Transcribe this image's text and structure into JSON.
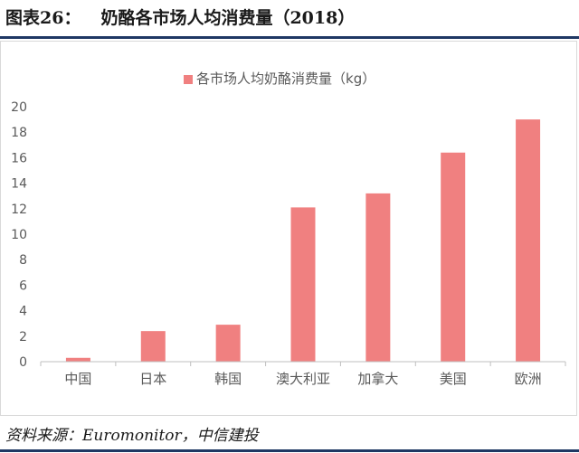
{
  "figure": {
    "label": "图表26：",
    "title": "奶酪各市场人均消费量（2018）",
    "source": "资料来源：Euromonitor，中信建投"
  },
  "colors": {
    "bar": "#f08080",
    "axis": "#bfbfbf",
    "text": "#595959",
    "rule": "#1f3864"
  },
  "chart_data": {
    "type": "bar",
    "categories": [
      "中国",
      "日本",
      "韩国",
      "澳大利亚",
      "加拿大",
      "美国",
      "欧洲"
    ],
    "series": [
      {
        "name": "各市场人均奶酪消费量（kg）",
        "values": [
          0.3,
          2.4,
          2.9,
          12.1,
          13.2,
          16.4,
          19.0
        ]
      }
    ],
    "ylim": [
      0,
      20
    ],
    "yticks": [
      "0",
      "2",
      "4",
      "6",
      "8",
      "10",
      "12",
      "14",
      "16",
      "18",
      "20"
    ],
    "grid": false,
    "legend_position": "top"
  }
}
